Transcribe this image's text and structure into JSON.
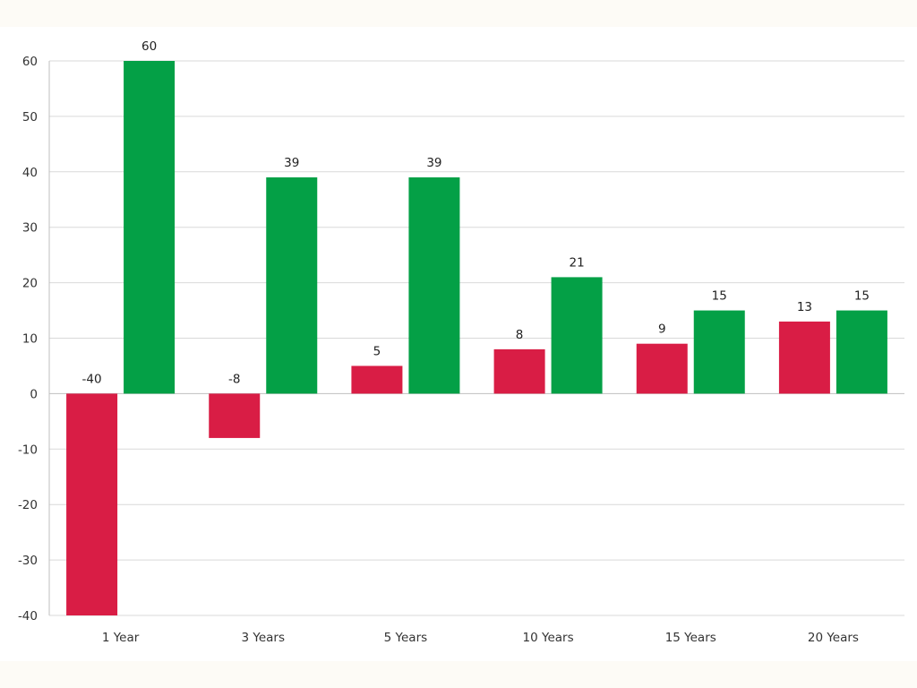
{
  "chart_data": {
    "type": "bar",
    "categories": [
      "1 Year",
      "3 Years",
      "5 Years",
      "10 Years",
      "15 Years",
      "20 Years"
    ],
    "series": [
      {
        "color": "#d91d45",
        "values": [
          -40,
          -8,
          5,
          8,
          9,
          13
        ]
      },
      {
        "color": "#04a046",
        "values": [
          60,
          39,
          39,
          21,
          15,
          15
        ]
      }
    ],
    "ylim": [
      -40,
      60
    ],
    "yticks": [
      -40,
      -30,
      -20,
      -10,
      0,
      10,
      20,
      30,
      40,
      50,
      60
    ],
    "grid": true,
    "legend": "none",
    "data_labels": true,
    "title": "",
    "xlabel": "",
    "ylabel": ""
  }
}
